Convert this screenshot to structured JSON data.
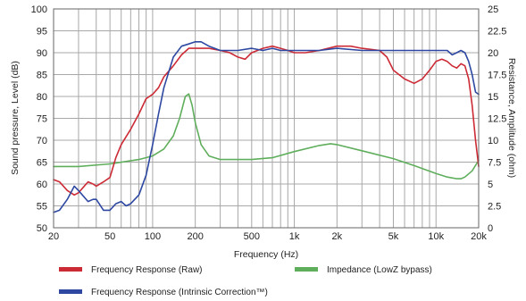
{
  "chart_data": {
    "type": "line",
    "title": "",
    "xlabel": "Frequency (Hz)",
    "ylabel_left": "Sound pressure, Level (dB)",
    "ylabel_right": "Resistance, Amplitude (ohm)",
    "x_scale": "log",
    "xlim": [
      20,
      20000
    ],
    "ylim_left": [
      50,
      100
    ],
    "ylim_right": [
      0,
      25
    ],
    "grid": true,
    "x_ticks": [
      {
        "value": 20,
        "label": "20"
      },
      {
        "value": 50,
        "label": "50"
      },
      {
        "value": 100,
        "label": "100"
      },
      {
        "value": 200,
        "label": "200"
      },
      {
        "value": 500,
        "label": "500"
      },
      {
        "value": 1000,
        "label": "1k"
      },
      {
        "value": 2000,
        "label": "2k"
      },
      {
        "value": 5000,
        "label": "5k"
      },
      {
        "value": 10000,
        "label": "10k"
      },
      {
        "value": 20000,
        "label": "20k"
      }
    ],
    "y_ticks_left": [
      "50",
      "55",
      "60",
      "65",
      "70",
      "75",
      "80",
      "85",
      "90",
      "95",
      "100"
    ],
    "y_ticks_right": [
      "0",
      "2.5",
      "5",
      "7.5",
      "10",
      "12.5",
      "15",
      "17.5",
      "20",
      "22.5",
      "25"
    ],
    "legend_position": "bottom",
    "series": [
      {
        "name": "Frequency Response (Raw)",
        "color": "#cc2b36",
        "axis": "left",
        "points": [
          [
            20,
            61
          ],
          [
            22,
            60.5
          ],
          [
            25,
            58.5
          ],
          [
            28,
            57.5
          ],
          [
            30,
            58
          ],
          [
            35,
            60.5
          ],
          [
            38,
            60
          ],
          [
            40,
            59.5
          ],
          [
            45,
            60.5
          ],
          [
            50,
            61.5
          ],
          [
            55,
            66
          ],
          [
            60,
            69
          ],
          [
            70,
            72.5
          ],
          [
            80,
            76
          ],
          [
            90,
            79.5
          ],
          [
            100,
            80.5
          ],
          [
            110,
            82
          ],
          [
            120,
            84.5
          ],
          [
            140,
            87
          ],
          [
            160,
            89.5
          ],
          [
            180,
            91
          ],
          [
            200,
            91
          ],
          [
            250,
            91
          ],
          [
            300,
            90.5
          ],
          [
            350,
            90
          ],
          [
            400,
            89
          ],
          [
            450,
            88.5
          ],
          [
            500,
            90
          ],
          [
            600,
            91
          ],
          [
            700,
            91.5
          ],
          [
            800,
            91
          ],
          [
            900,
            90.5
          ],
          [
            1000,
            90
          ],
          [
            1200,
            90
          ],
          [
            1500,
            90.5
          ],
          [
            2000,
            91.5
          ],
          [
            2500,
            91.5
          ],
          [
            3000,
            91
          ],
          [
            4000,
            90.5
          ],
          [
            4500,
            89
          ],
          [
            5000,
            86
          ],
          [
            6000,
            84
          ],
          [
            7000,
            83
          ],
          [
            8000,
            84
          ],
          [
            9000,
            86
          ],
          [
            10000,
            88
          ],
          [
            11000,
            88.5
          ],
          [
            12000,
            88
          ],
          [
            13000,
            87
          ],
          [
            14000,
            86.5
          ],
          [
            15000,
            87.5
          ],
          [
            16000,
            87
          ],
          [
            17000,
            84
          ],
          [
            18000,
            78
          ],
          [
            19000,
            70
          ],
          [
            20000,
            64
          ]
        ]
      },
      {
        "name": "Frequency Response (Intrinsic Correction™)",
        "color": "#2e48a2",
        "axis": "left",
        "points": [
          [
            20,
            53.5
          ],
          [
            22,
            54
          ],
          [
            25,
            56.5
          ],
          [
            28,
            59.5
          ],
          [
            30,
            58.5
          ],
          [
            35,
            56
          ],
          [
            38,
            56.5
          ],
          [
            40,
            56.5
          ],
          [
            45,
            54
          ],
          [
            50,
            54
          ],
          [
            55,
            55.5
          ],
          [
            60,
            56
          ],
          [
            65,
            55
          ],
          [
            70,
            55.5
          ],
          [
            80,
            57.5
          ],
          [
            90,
            62
          ],
          [
            100,
            69
          ],
          [
            110,
            76
          ],
          [
            120,
            82
          ],
          [
            140,
            89
          ],
          [
            160,
            91.5
          ],
          [
            180,
            92
          ],
          [
            200,
            92.5
          ],
          [
            220,
            92.5
          ],
          [
            250,
            91.5
          ],
          [
            300,
            90.5
          ],
          [
            350,
            90.5
          ],
          [
            400,
            90.5
          ],
          [
            500,
            91
          ],
          [
            600,
            90.5
          ],
          [
            700,
            91
          ],
          [
            800,
            90.5
          ],
          [
            900,
            90.5
          ],
          [
            1000,
            90.5
          ],
          [
            1500,
            90.5
          ],
          [
            2000,
            91
          ],
          [
            3000,
            90.5
          ],
          [
            5000,
            90.5
          ],
          [
            7000,
            90.5
          ],
          [
            10000,
            90.5
          ],
          [
            12000,
            90.5
          ],
          [
            13000,
            89.5
          ],
          [
            14000,
            90
          ],
          [
            15000,
            90.5
          ],
          [
            16000,
            90
          ],
          [
            17000,
            88
          ],
          [
            18000,
            85
          ],
          [
            19000,
            81
          ],
          [
            20000,
            80.5
          ]
        ]
      },
      {
        "name": "Impedance (LowZ bypass)",
        "color": "#5fae5c",
        "axis": "right",
        "points": [
          [
            20,
            7
          ],
          [
            30,
            7
          ],
          [
            50,
            7.3
          ],
          [
            80,
            7.8
          ],
          [
            100,
            8.2
          ],
          [
            120,
            9
          ],
          [
            140,
            10.5
          ],
          [
            155,
            12.5
          ],
          [
            170,
            15
          ],
          [
            180,
            15.3
          ],
          [
            190,
            14
          ],
          [
            200,
            12
          ],
          [
            220,
            9.5
          ],
          [
            250,
            8.2
          ],
          [
            300,
            7.8
          ],
          [
            400,
            7.8
          ],
          [
            500,
            7.8
          ],
          [
            700,
            8
          ],
          [
            1000,
            8.7
          ],
          [
            1500,
            9.4
          ],
          [
            1800,
            9.6
          ],
          [
            2000,
            9.5
          ],
          [
            3000,
            8.8
          ],
          [
            5000,
            7.9
          ],
          [
            7000,
            7.1
          ],
          [
            10000,
            6.2
          ],
          [
            12000,
            5.8
          ],
          [
            14000,
            5.6
          ],
          [
            15000,
            5.6
          ],
          [
            16000,
            5.8
          ],
          [
            18000,
            6.5
          ],
          [
            20000,
            7.7
          ]
        ]
      }
    ]
  }
}
